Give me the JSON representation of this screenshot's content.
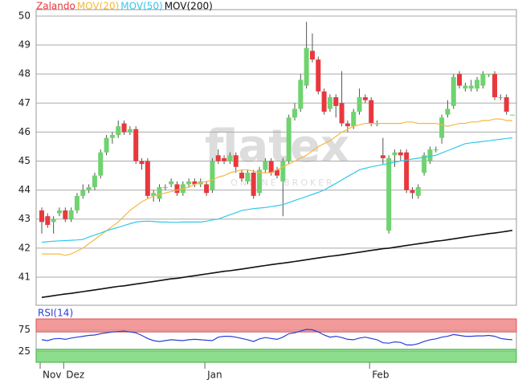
{
  "chart_data": [
    {
      "type": "candlestick",
      "categories": [
        "Nov",
        null,
        null,
        null,
        "Dez",
        null,
        null,
        null,
        null,
        null,
        null,
        null,
        null,
        null,
        null,
        null,
        null,
        null,
        null,
        null,
        null,
        null,
        null,
        null,
        null,
        null,
        null,
        null,
        "Jan",
        null,
        null,
        null,
        null,
        null,
        null,
        null,
        null,
        null,
        null,
        null,
        null,
        null,
        null,
        null,
        null,
        null,
        null,
        null,
        null,
        null,
        null,
        null,
        null,
        null,
        null,
        null,
        "Feb",
        null,
        null,
        null,
        null,
        null,
        null,
        null,
        null,
        null,
        null,
        null,
        null,
        null,
        null,
        null,
        null,
        null,
        null,
        null,
        null,
        null,
        null,
        null,
        null
      ],
      "candles": {
        "name": "Zalando",
        "color": "#e8383d",
        "up_color": "#6fd36f",
        "down_color": "#e8383d",
        "open": [
          43.3,
          43.1,
          42.9,
          43.2,
          43.3,
          43.0,
          43.3,
          43.8,
          44.0,
          44.1,
          44.5,
          45.3,
          45.8,
          45.9,
          46.3,
          46.0,
          46.1,
          45.0,
          45.0,
          43.8,
          43.7,
          44.1,
          44.2,
          44.2,
          43.9,
          44.2,
          44.3,
          44.2,
          44.2,
          44.0,
          45.2,
          45.1,
          45.0,
          45.2,
          44.6,
          44.3,
          44.6,
          43.9,
          44.7,
          45.0,
          44.7,
          44.3,
          45.0,
          46.5,
          46.8,
          47.6,
          48.8,
          48.5,
          47.4,
          46.8,
          47.2,
          47.0,
          46.3,
          46.2,
          46.7,
          47.2,
          47.1,
          46.3,
          45.2,
          42.6,
          45.2,
          45.3,
          45.3,
          44.0,
          43.8,
          44.6,
          45.0,
          45.4,
          45.8,
          46.6,
          46.9,
          48.0,
          47.5,
          47.5,
          47.5,
          47.6,
          48.0,
          48.0,
          47.2,
          47.2,
          46.6
        ],
        "high": [
          43.4,
          43.2,
          43.1,
          43.4,
          43.4,
          43.4,
          43.9,
          44.2,
          44.2,
          44.6,
          45.4,
          45.9,
          46.0,
          46.4,
          46.4,
          46.2,
          46.2,
          45.1,
          45.1,
          44.0,
          44.2,
          44.2,
          44.4,
          44.3,
          44.3,
          44.4,
          44.4,
          44.4,
          44.3,
          45.1,
          45.4,
          45.2,
          45.3,
          45.3,
          44.7,
          44.7,
          44.7,
          44.8,
          45.1,
          45.1,
          44.8,
          45.1,
          46.6,
          47.0,
          48.0,
          49.8,
          49.4,
          48.6,
          47.5,
          47.3,
          47.3,
          48.1,
          46.4,
          46.8,
          47.5,
          47.3,
          47.2,
          46.4,
          45.8,
          45.2,
          45.4,
          45.4,
          45.4,
          44.1,
          44.2,
          45.3,
          45.5,
          45.5,
          46.6,
          47.1,
          48.0,
          48.1,
          47.7,
          47.8,
          47.9,
          48.1,
          48.0,
          48.1,
          47.3,
          47.3,
          46.6
        ],
        "low": [
          42.5,
          42.7,
          42.5,
          43.1,
          42.9,
          42.9,
          43.2,
          43.7,
          43.9,
          44.0,
          44.4,
          45.2,
          45.6,
          45.8,
          45.9,
          45.9,
          44.9,
          44.7,
          43.7,
          43.6,
          43.6,
          44.0,
          44.1,
          43.8,
          43.8,
          44.1,
          44.1,
          44.1,
          43.8,
          43.9,
          44.9,
          44.9,
          44.9,
          44.6,
          44.3,
          44.2,
          43.7,
          43.8,
          44.6,
          44.5,
          44.4,
          43.1,
          44.9,
          46.4,
          46.7,
          47.5,
          48.4,
          47.3,
          46.6,
          46.7,
          46.5,
          46.2,
          46.0,
          46.1,
          46.6,
          47.0,
          46.2,
          46.2,
          44.9,
          42.5,
          44.8,
          45.0,
          43.9,
          43.7,
          43.7,
          44.5,
          44.9,
          45.3,
          45.6,
          46.5,
          46.8,
          47.5,
          47.4,
          47.4,
          47.4,
          47.5,
          47.9,
          47.1,
          47.1,
          46.6,
          46.6
        ],
        "close": [
          42.9,
          42.8,
          43.0,
          43.3,
          43.0,
          43.3,
          43.8,
          44.0,
          44.1,
          44.5,
          45.3,
          45.8,
          45.9,
          46.2,
          46.0,
          46.1,
          45.0,
          44.9,
          43.8,
          43.9,
          44.1,
          44.1,
          44.3,
          43.9,
          44.2,
          44.3,
          44.2,
          44.3,
          43.9,
          45.0,
          45.0,
          45.0,
          45.2,
          44.8,
          44.4,
          44.6,
          43.8,
          44.7,
          45.0,
          44.6,
          44.5,
          45.0,
          46.5,
          46.8,
          47.8,
          48.9,
          48.5,
          47.4,
          46.7,
          47.2,
          46.9,
          46.3,
          46.2,
          46.7,
          47.2,
          47.1,
          46.3,
          46.3,
          45.1,
          45.1,
          45.3,
          45.2,
          44.0,
          43.9,
          44.1,
          45.2,
          45.4,
          45.4,
          46.5,
          46.8,
          47.9,
          47.6,
          47.6,
          47.6,
          47.8,
          48.0,
          48.0,
          47.2,
          47.2,
          46.7,
          46.6
        ]
      },
      "series": [
        {
          "name": "MOV(20)",
          "color": "#f5b942",
          "values": [
            41.8,
            41.8,
            41.8,
            41.8,
            41.75,
            41.8,
            41.9,
            42.0,
            42.15,
            42.3,
            42.45,
            42.6,
            42.75,
            42.9,
            43.1,
            43.3,
            43.45,
            43.6,
            43.7,
            43.8,
            43.85,
            43.9,
            43.95,
            44.0,
            44.05,
            44.1,
            44.2,
            44.25,
            44.3,
            44.35,
            44.45,
            44.5,
            44.6,
            44.65,
            44.7,
            44.7,
            44.65,
            44.6,
            44.6,
            44.6,
            44.7,
            44.8,
            44.9,
            45.0,
            45.1,
            45.2,
            45.35,
            45.5,
            45.6,
            45.7,
            45.85,
            46.0,
            46.1,
            46.2,
            46.25,
            46.3,
            46.3,
            46.3,
            46.3,
            46.3,
            46.3,
            46.3,
            46.35,
            46.35,
            46.3,
            46.3,
            46.3,
            46.3,
            46.25,
            46.2,
            46.25,
            46.3,
            46.3,
            46.35,
            46.35,
            46.4,
            46.4,
            46.45,
            46.45,
            46.4,
            46.4
          ]
        },
        {
          "name": "MOV(50)",
          "color": "#33c8ea",
          "values": [
            42.2,
            42.22,
            42.24,
            42.25,
            42.26,
            42.27,
            42.28,
            42.3,
            42.38,
            42.45,
            42.52,
            42.6,
            42.66,
            42.72,
            42.78,
            42.84,
            42.9,
            42.92,
            42.93,
            42.92,
            42.9,
            42.9,
            42.89,
            42.89,
            42.9,
            42.9,
            42.9,
            42.9,
            42.93,
            42.97,
            43.0,
            43.08,
            43.15,
            43.22,
            43.3,
            43.33,
            43.36,
            43.38,
            43.4,
            43.43,
            43.46,
            43.5,
            43.57,
            43.64,
            43.71,
            43.78,
            43.85,
            43.92,
            44.0,
            44.12,
            44.23,
            44.35,
            44.47,
            44.58,
            44.7,
            44.75,
            44.8,
            44.84,
            44.88,
            44.92,
            44.96,
            45.0,
            45.03,
            45.07,
            45.1,
            45.13,
            45.17,
            45.2,
            45.28,
            45.36,
            45.44,
            45.52,
            45.6,
            45.63,
            45.65,
            45.68,
            45.7,
            45.73,
            45.75,
            45.78,
            45.8
          ]
        },
        {
          "name": "MOV(200)",
          "color": "#111111",
          "values": [
            40.3,
            40.33,
            40.36,
            40.39,
            40.42,
            40.44,
            40.47,
            40.5,
            40.53,
            40.56,
            40.59,
            40.62,
            40.65,
            40.68,
            40.7,
            40.73,
            40.76,
            40.79,
            40.82,
            40.85,
            40.88,
            40.91,
            40.94,
            40.96,
            40.99,
            41.02,
            41.05,
            41.08,
            41.11,
            41.14,
            41.17,
            41.2,
            41.22,
            41.25,
            41.28,
            41.31,
            41.34,
            41.37,
            41.4,
            41.43,
            41.46,
            41.48,
            41.51,
            41.54,
            41.57,
            41.6,
            41.63,
            41.66,
            41.69,
            41.72,
            41.74,
            41.77,
            41.8,
            41.83,
            41.86,
            41.89,
            41.92,
            41.95,
            41.98,
            42.0,
            42.03,
            42.06,
            42.09,
            42.12,
            42.15,
            42.18,
            42.21,
            42.24,
            42.26,
            42.29,
            42.32,
            42.35,
            42.38,
            42.41,
            42.44,
            42.47,
            42.5,
            42.52,
            42.55,
            42.58,
            42.61
          ]
        }
      ],
      "ylim": [
        40.03,
        50.22
      ],
      "yticks": [
        41,
        42,
        43,
        44,
        45,
        46,
        47,
        48,
        49,
        50
      ],
      "grid": true,
      "watermark": [
        "flatex",
        "ONLINE BROKER"
      ]
    },
    {
      "type": "line",
      "name": "RSI(14)",
      "color": "#2a3fd6",
      "values": [
        52,
        50,
        54,
        55,
        53,
        56,
        58,
        60,
        62,
        63,
        66,
        68,
        70,
        71,
        72,
        70,
        68,
        62,
        55,
        50,
        48,
        50,
        52,
        51,
        50,
        52,
        53,
        52,
        51,
        50,
        58,
        60,
        60,
        58,
        55,
        52,
        48,
        54,
        57,
        55,
        53,
        58,
        66,
        68,
        72,
        76,
        75,
        70,
        63,
        58,
        60,
        57,
        53,
        52,
        56,
        58,
        55,
        52,
        45,
        44,
        47,
        46,
        40,
        40,
        43,
        48,
        52,
        54,
        58,
        60,
        64,
        62,
        60,
        60,
        61,
        61,
        62,
        60,
        55,
        53,
        52
      ],
      "bands": [
        {
          "range": [
            70,
            100
          ],
          "color": "#f29a9a"
        },
        {
          "range": [
            0,
            30
          ],
          "color": "#8ddc8d"
        }
      ],
      "ylim": [
        0,
        100
      ],
      "yticks": [
        25,
        75
      ]
    }
  ]
}
